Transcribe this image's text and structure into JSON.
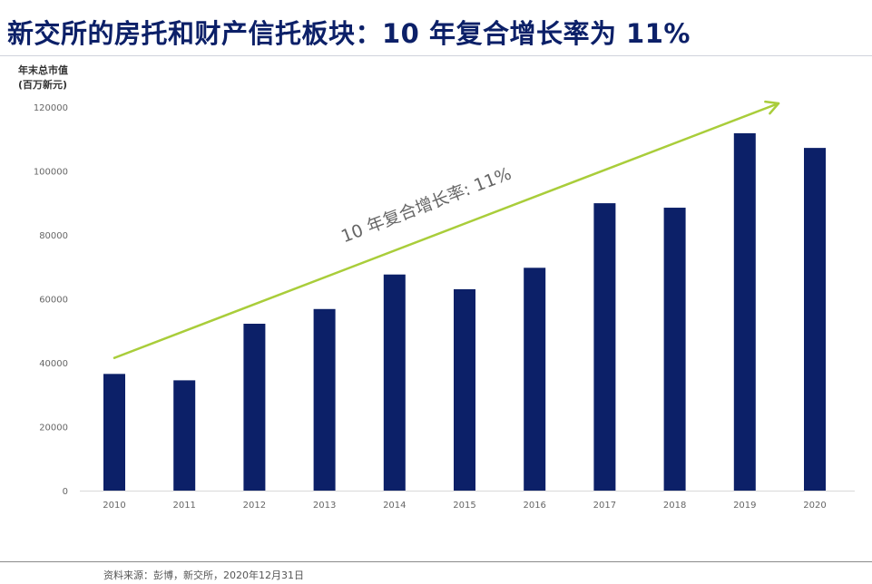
{
  "title": "新交所的房托和财产信托板块：10 年复合增长率为 11%",
  "source": "资料来源：彭博，新交所，2020年12月31日",
  "colors": {
    "title": "#0c2068",
    "bar": "#0c2068",
    "arrow": "#a9cd3a",
    "annotation": "#666666"
  },
  "chart_data": {
    "type": "bar",
    "title": "",
    "ylabel_line1": "年末总市值",
    "ylabel_line2": "(百万新元)",
    "xlabel": "",
    "categories": [
      "2010",
      "2011",
      "2012",
      "2013",
      "2014",
      "2015",
      "2016",
      "2017",
      "2018",
      "2019",
      "2020"
    ],
    "values": [
      36500,
      34500,
      52200,
      56800,
      67600,
      63000,
      69700,
      89900,
      88500,
      111800,
      107200
    ],
    "ylim": [
      0,
      120000
    ],
    "yticks": [
      0,
      20000,
      40000,
      60000,
      80000,
      100000,
      120000
    ],
    "ytick_labels": [
      "0",
      "20000",
      "40000",
      "60000",
      "80000",
      "100000",
      "120000"
    ],
    "grid": false,
    "annotation": {
      "text": "10 年复合增长率: 11%",
      "arrow_from": {
        "category": "2010",
        "value": 41500
      },
      "arrow_to": {
        "category": "2020",
        "value": 120000
      }
    }
  }
}
